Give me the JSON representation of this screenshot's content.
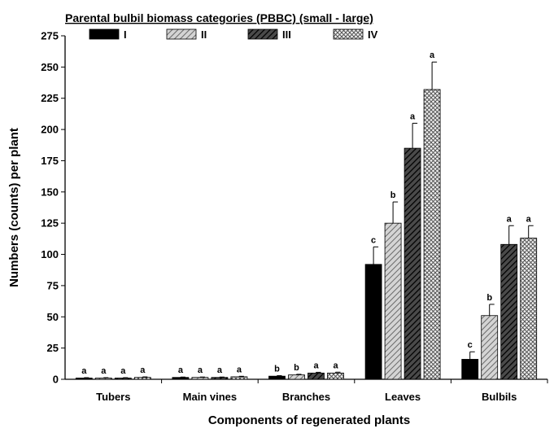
{
  "chart_data": {
    "type": "bar",
    "title": "",
    "xlabel": "Components of regenerated plants",
    "ylabel": "Numbers (counts) per plant",
    "ylim": [
      0,
      275
    ],
    "yticks": [
      0,
      25,
      50,
      75,
      100,
      125,
      150,
      175,
      200,
      225,
      250,
      275
    ],
    "legend_title": "Parental bulbil biomass categories (PBBC) (small - large)",
    "legend_position": "top",
    "grid": false,
    "categories": [
      "Tubers",
      "Main vines",
      "Branches",
      "Leaves",
      "Bulbils"
    ],
    "series": [
      {
        "name": "I",
        "fill": "solid-black",
        "values": [
          1,
          1.5,
          2.5,
          92,
          16
        ],
        "errors": [
          0.3,
          0.3,
          0.4,
          14,
          6
        ],
        "letters": [
          "a",
          "a",
          "b",
          "c",
          "c"
        ]
      },
      {
        "name": "II",
        "fill": "gray-diagonal-hatch",
        "values": [
          1,
          1.5,
          3.5,
          125,
          51
        ],
        "errors": [
          0.3,
          0.3,
          0.5,
          17,
          9
        ],
        "letters": [
          "a",
          "a",
          "b",
          "b",
          "b"
        ]
      },
      {
        "name": "III",
        "fill": "dark-diagonal-hatch",
        "values": [
          1,
          1.5,
          5,
          185,
          108
        ],
        "errors": [
          0.3,
          0.3,
          0.6,
          20,
          15
        ],
        "letters": [
          "a",
          "a",
          "a",
          "a",
          "a"
        ]
      },
      {
        "name": "IV",
        "fill": "crosshatch",
        "values": [
          1.5,
          2,
          5,
          232,
          113
        ],
        "errors": [
          0.4,
          0.4,
          0.7,
          22,
          10
        ],
        "letters": [
          "a",
          "a",
          "a",
          "a",
          "a"
        ]
      }
    ]
  }
}
